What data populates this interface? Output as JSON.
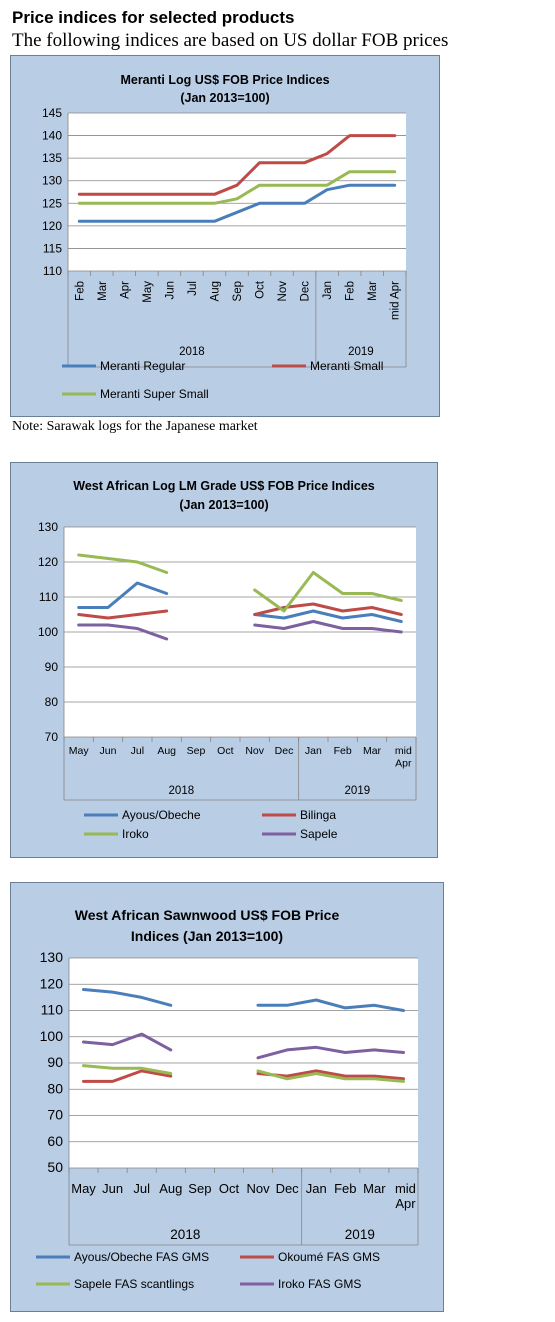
{
  "page": {
    "heading": "Price indices for selected products",
    "subheading": "The following indices are based on US dollar FOB prices",
    "note": "Note: Sarawak logs for the Japanese market"
  },
  "chart_data": [
    {
      "type": "line",
      "title_lines": [
        "Meranti Log US$ FOB Price Indices",
        "(Jan 2013=100)"
      ],
      "categories": [
        "Feb",
        "Mar",
        "Apr",
        "May",
        "Jun",
        "Jul",
        "Aug",
        "Sep",
        "Oct",
        "Nov",
        "Dec",
        "Jan",
        "Feb",
        "Mar",
        "mid Apr"
      ],
      "groups": [
        {
          "label": "2018",
          "start": 0,
          "end": 10
        },
        {
          "label": "2019",
          "start": 11,
          "end": 14
        }
      ],
      "ylim": [
        110,
        145
      ],
      "yticks": [
        110,
        115,
        120,
        125,
        130,
        135,
        140,
        145
      ],
      "series": [
        {
          "name": "Meranti Regular",
          "color": "#4a7ebb",
          "values": [
            121,
            121,
            121,
            121,
            121,
            121,
            121,
            123,
            125,
            125,
            125,
            128,
            129,
            129,
            129
          ]
        },
        {
          "name": "Meranti Small",
          "color": "#be4b48",
          "values": [
            127,
            127,
            127,
            127,
            127,
            127,
            127,
            129,
            134,
            134,
            134,
            136,
            140,
            140,
            140
          ]
        },
        {
          "name": "Meranti Super Small",
          "color": "#98b954",
          "values": [
            125,
            125,
            125,
            125,
            125,
            125,
            125,
            126,
            129,
            129,
            129,
            129,
            132,
            132,
            132
          ]
        }
      ],
      "grid": true,
      "legend": "bottom"
    },
    {
      "type": "line",
      "title_lines": [
        "West African Log LM Grade US$ FOB Price Indices",
        "(Jan 2013=100)"
      ],
      "categories": [
        "May",
        "Jun",
        "Jul",
        "Aug",
        "Sep",
        "Oct",
        "Nov",
        "Dec",
        "Jan",
        "Feb",
        "Mar",
        "mid Apr"
      ],
      "groups": [
        {
          "label": "2018",
          "start": 0,
          "end": 7
        },
        {
          "label": "2019",
          "start": 8,
          "end": 11
        }
      ],
      "ylim": [
        70,
        130
      ],
      "yticks": [
        70,
        80,
        90,
        100,
        110,
        120,
        130
      ],
      "series": [
        {
          "name": "Ayous/Obeche",
          "color": "#4a7ebb",
          "values": [
            107,
            107,
            114,
            111,
            null,
            null,
            105,
            104,
            106,
            104,
            105,
            103
          ]
        },
        {
          "name": "Bilinga",
          "color": "#be4b48",
          "values": [
            105,
            104,
            105,
            106,
            null,
            null,
            105,
            107,
            108,
            106,
            107,
            105
          ]
        },
        {
          "name": "Iroko",
          "color": "#98b954",
          "values": [
            122,
            121,
            120,
            117,
            null,
            null,
            112,
            106,
            117,
            111,
            111,
            109
          ]
        },
        {
          "name": "Sapele",
          "color": "#7d60a0",
          "values": [
            102,
            102,
            101,
            98,
            null,
            null,
            102,
            101,
            103,
            101,
            101,
            100
          ]
        }
      ],
      "grid": true,
      "legend": "bottom"
    },
    {
      "type": "line",
      "title_lines": [
        "West African Sawnwood US$ FOB Price",
        "Indices (Jan 2013=100)"
      ],
      "categories": [
        "May",
        "Jun",
        "Jul",
        "Aug",
        "Sep",
        "Oct",
        "Nov",
        "Dec",
        "Jan",
        "Feb",
        "Mar",
        "mid Apr"
      ],
      "groups": [
        {
          "label": "2018",
          "start": 0,
          "end": 7
        },
        {
          "label": "2019",
          "start": 8,
          "end": 11
        }
      ],
      "ylim": [
        50,
        130
      ],
      "yticks": [
        50,
        60,
        70,
        80,
        90,
        100,
        110,
        120,
        130
      ],
      "series": [
        {
          "name": "Ayous/Obeche FAS GMS",
          "color": "#4a7ebb",
          "values": [
            118,
            117,
            115,
            112,
            null,
            null,
            112,
            112,
            114,
            111,
            112,
            110
          ]
        },
        {
          "name": "Okoumé FAS GMS",
          "color": "#be4b48",
          "values": [
            83,
            83,
            87,
            85,
            null,
            null,
            86,
            85,
            87,
            85,
            85,
            84
          ]
        },
        {
          "name": "Sapele FAS scantlings",
          "color": "#98b954",
          "values": [
            89,
            88,
            88,
            86,
            null,
            null,
            87,
            84,
            86,
            84,
            84,
            83
          ]
        },
        {
          "name": "Iroko FAS GMS",
          "color": "#7d60a0",
          "values": [
            98,
            97,
            101,
            95,
            null,
            null,
            92,
            95,
            96,
            94,
            95,
            94
          ]
        }
      ],
      "grid": true,
      "legend": "bottom"
    }
  ]
}
